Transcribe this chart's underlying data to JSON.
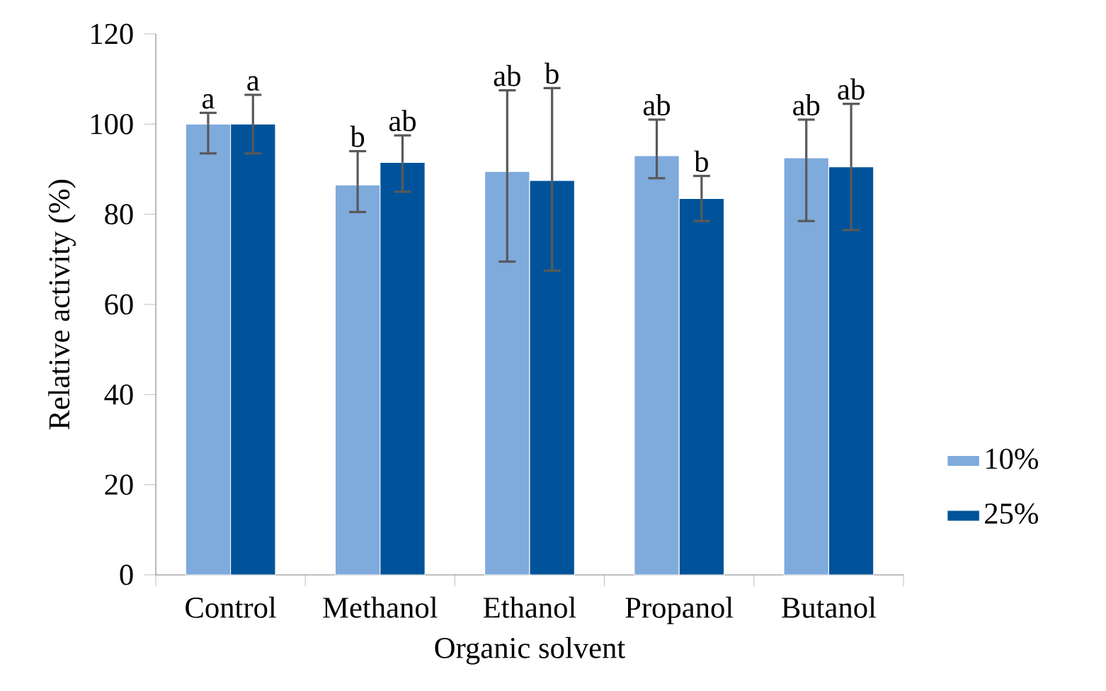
{
  "chart_data": {
    "type": "bar",
    "xlabel": "Organic solvent",
    "ylabel": "Relative activity (%)",
    "categories": [
      "Control",
      "Methanol",
      "Ethanol",
      "Propanol",
      "Butanol"
    ],
    "series": [
      {
        "name": "10%",
        "color": "#7faadc",
        "values": [
          100,
          86.5,
          89.5,
          93,
          92.5
        ],
        "errors": [
          [
            93.5,
            102.5
          ],
          [
            80.5,
            94
          ],
          [
            69.5,
            107.5
          ],
          [
            88,
            101
          ],
          [
            78.5,
            101
          ]
        ]
      },
      {
        "name": "25%",
        "color": "#00539a",
        "values": [
          100,
          91.5,
          87.5,
          83.5,
          90.5
        ],
        "errors": [
          [
            93.5,
            106.5
          ],
          [
            85,
            97.5
          ],
          [
            67.5,
            108
          ],
          [
            78.5,
            88.5
          ],
          [
            76.5,
            104.5
          ]
        ]
      }
    ],
    "ylim": [
      0,
      120
    ],
    "yticks": [
      0,
      20,
      40,
      60,
      80,
      100,
      120
    ],
    "grid": false,
    "legend": "right",
    "annotations": [
      "a",
      "a",
      "b",
      "ab",
      "ab",
      "b",
      "ab",
      "b",
      "ab",
      "ab"
    ]
  }
}
